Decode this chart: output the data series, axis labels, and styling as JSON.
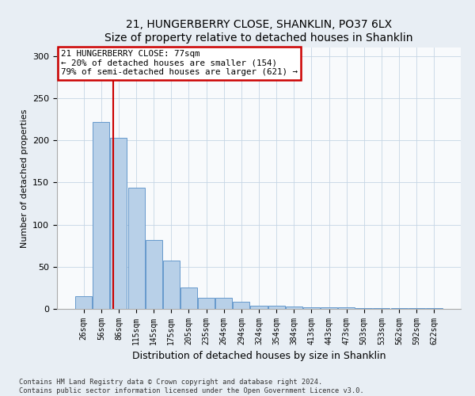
{
  "title": "21, HUNGERBERRY CLOSE, SHANKLIN, PO37 6LX",
  "subtitle": "Size of property relative to detached houses in Shanklin",
  "xlabel": "Distribution of detached houses by size in Shanklin",
  "ylabel": "Number of detached properties",
  "bar_labels": [
    "26sqm",
    "56sqm",
    "86sqm",
    "115sqm",
    "145sqm",
    "175sqm",
    "205sqm",
    "235sqm",
    "264sqm",
    "294sqm",
    "324sqm",
    "354sqm",
    "384sqm",
    "413sqm",
    "443sqm",
    "473sqm",
    "503sqm",
    "533sqm",
    "562sqm",
    "592sqm",
    "622sqm"
  ],
  "bar_values": [
    15,
    222,
    203,
    144,
    82,
    57,
    25,
    13,
    13,
    8,
    4,
    4,
    3,
    2,
    2,
    2,
    1,
    1,
    1,
    1,
    1
  ],
  "bar_color": "#b8d0e8",
  "bar_edge_color": "#6699cc",
  "red_line_x": 1.7,
  "annotation_line1": "21 HUNGERBERRY CLOSE: 77sqm",
  "annotation_line2": "← 20% of detached houses are smaller (154)",
  "annotation_line3": "79% of semi-detached houses are larger (621) →",
  "annotation_box_color": "#ffffff",
  "annotation_box_edge": "#cc0000",
  "ylim": [
    0,
    310
  ],
  "yticks": [
    0,
    50,
    100,
    150,
    200,
    250,
    300
  ],
  "footer_line1": "Contains HM Land Registry data © Crown copyright and database right 2024.",
  "footer_line2": "Contains public sector information licensed under the Open Government Licence v3.0.",
  "bg_color": "#e8eef4",
  "plot_bg_color": "#f8fafc"
}
